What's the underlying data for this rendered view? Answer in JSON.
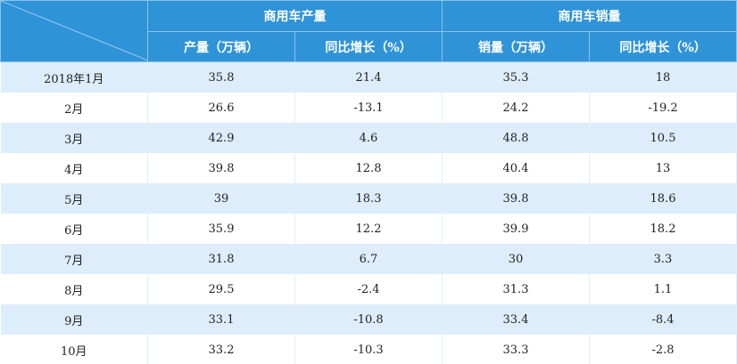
{
  "table": {
    "group_headers": [
      "商用车产量",
      "商用车销量"
    ],
    "column_headers": [
      "产量（万辆）",
      "同比增长（%）",
      "销量（万辆）",
      "同比增长（%）"
    ],
    "rows": [
      [
        "2018年1月",
        35.8,
        21.4,
        35.3,
        18
      ],
      [
        "2月",
        26.6,
        -13.1,
        24.2,
        -19.2
      ],
      [
        "3月",
        42.9,
        4.6,
        48.8,
        10.5
      ],
      [
        "4月",
        39.8,
        12.8,
        40.4,
        13
      ],
      [
        "5月",
        39,
        18.3,
        39.8,
        18.6
      ],
      [
        "6月",
        35.9,
        12.2,
        39.9,
        18.2
      ],
      [
        "7月",
        31.8,
        6.7,
        30,
        3.3
      ],
      [
        "8月",
        29.5,
        -2.4,
        31.3,
        1.1
      ],
      [
        "9月",
        33.1,
        -10.8,
        33.4,
        -8.4
      ],
      [
        "10月",
        33.2,
        -10.3,
        33.3,
        -2.8
      ]
    ]
  }
}
